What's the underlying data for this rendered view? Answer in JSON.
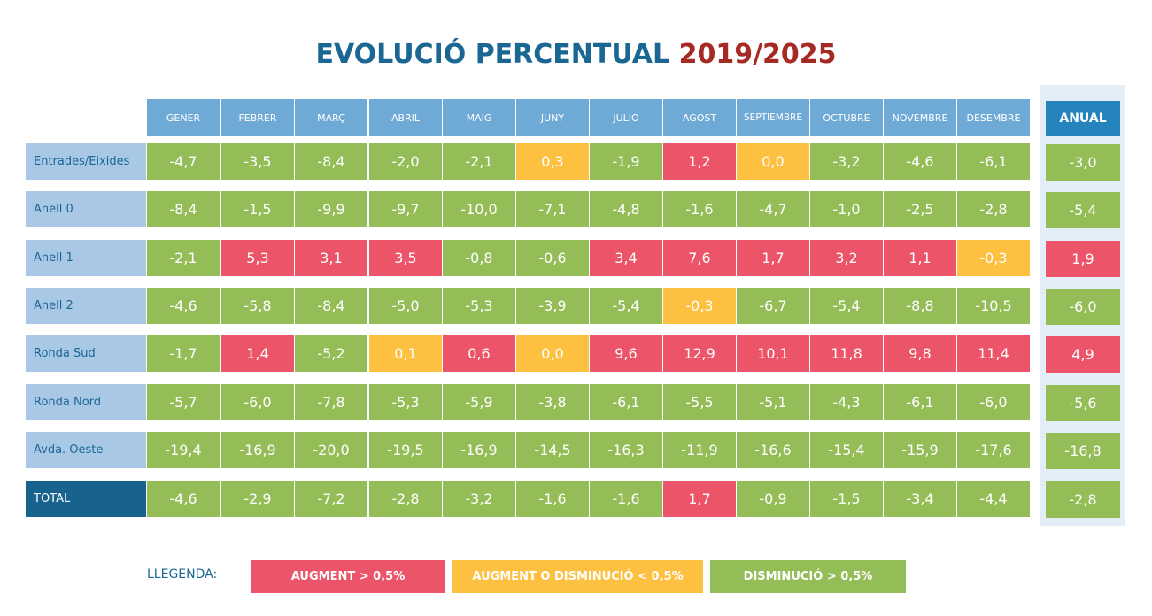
{
  "title": {
    "main": "EVOLUCIÓ PERCENTUAL",
    "years": "2019/2025"
  },
  "colors": {
    "increase": "#ec5569",
    "neutral": "#fdc040",
    "decrease": "#94bd58",
    "header": "#6faad6",
    "anual_header": "#2584bd",
    "row_label": "#a8c8e6",
    "total_label": "#17638d"
  },
  "chart_data": {
    "type": "table",
    "title": "EVOLUCIÓ PERCENTUAL 2019/2025",
    "columns": [
      "GENER",
      "FEBRER",
      "MARÇ",
      "ABRIL",
      "MAIG",
      "JUNY",
      "JULIO",
      "AGOST",
      "SEPTIEMBRE",
      "OCTUBRE",
      "NOVEMBRE",
      "DESEMBRE"
    ],
    "annual_header": "ANUAL",
    "rows": [
      {
        "label": "Entrades/Eixides",
        "values": [
          "-4,7",
          "-3,5",
          "-8,4",
          "-2,0",
          "-2,1",
          "0,3",
          "-1,9",
          "1,2",
          "0,0",
          "-3,2",
          "-4,6",
          "-6,1"
        ],
        "status": [
          "d",
          "d",
          "d",
          "d",
          "d",
          "n",
          "d",
          "i",
          "n",
          "d",
          "d",
          "d"
        ],
        "annual": "-3,0",
        "annual_status": "d"
      },
      {
        "label": "Anell 0",
        "values": [
          "-8,4",
          "-1,5",
          "-9,9",
          "-9,7",
          "-10,0",
          "-7,1",
          "-4,8",
          "-1,6",
          "-4,7",
          "-1,0",
          "-2,5",
          "-2,8"
        ],
        "status": [
          "d",
          "d",
          "d",
          "d",
          "d",
          "d",
          "d",
          "d",
          "d",
          "d",
          "d",
          "d"
        ],
        "annual": "-5,4",
        "annual_status": "d"
      },
      {
        "label": "Anell 1",
        "values": [
          "-2,1",
          "5,3",
          "3,1",
          "3,5",
          "-0,8",
          "-0,6",
          "3,4",
          "7,6",
          "1,7",
          "3,2",
          "1,1",
          "-0,3"
        ],
        "status": [
          "d",
          "i",
          "i",
          "i",
          "d",
          "d",
          "i",
          "i",
          "i",
          "i",
          "i",
          "n"
        ],
        "annual": "1,9",
        "annual_status": "i"
      },
      {
        "label": "Anell 2",
        "values": [
          "-4,6",
          "-5,8",
          "-8,4",
          "-5,0",
          "-5,3",
          "-3,9",
          "-5,4",
          "-0,3",
          "-6,7",
          "-5,4",
          "-8,8",
          "-10,5"
        ],
        "status": [
          "d",
          "d",
          "d",
          "d",
          "d",
          "d",
          "d",
          "n",
          "d",
          "d",
          "d",
          "d"
        ],
        "annual": "-6,0",
        "annual_status": "d"
      },
      {
        "label": "Ronda Sud",
        "values": [
          "-1,7",
          "1,4",
          "-5,2",
          "0,1",
          "0,6",
          "0,0",
          "9,6",
          "12,9",
          "10,1",
          "11,8",
          "9,8",
          "11,4"
        ],
        "status": [
          "d",
          "i",
          "d",
          "n",
          "i",
          "n",
          "i",
          "i",
          "i",
          "i",
          "i",
          "i"
        ],
        "annual": "4,9",
        "annual_status": "i"
      },
      {
        "label": "Ronda Nord",
        "values": [
          "-5,7",
          "-6,0",
          "-7,8",
          "-5,3",
          "-5,9",
          "-3,8",
          "-6,1",
          "-5,5",
          "-5,1",
          "-4,3",
          "-6,1",
          "-6,0"
        ],
        "status": [
          "d",
          "d",
          "d",
          "d",
          "d",
          "d",
          "d",
          "d",
          "d",
          "d",
          "d",
          "d"
        ],
        "annual": "-5,6",
        "annual_status": "d"
      },
      {
        "label": "Avda. Oeste",
        "values": [
          "-19,4",
          "-16,9",
          "-20,0",
          "-19,5",
          "-16,9",
          "-14,5",
          "-16,3",
          "-11,9",
          "-16,6",
          "-15,4",
          "-15,9",
          "-17,6"
        ],
        "status": [
          "d",
          "d",
          "d",
          "d",
          "d",
          "d",
          "d",
          "d",
          "d",
          "d",
          "d",
          "d"
        ],
        "annual": "-16,8",
        "annual_status": "d"
      },
      {
        "label": "TOTAL",
        "values": [
          "-4,6",
          "-2,9",
          "-7,2",
          "-2,8",
          "-3,2",
          "-1,6",
          "-1,6",
          "1,7",
          "-0,9",
          "-1,5",
          "-3,4",
          "-4,4"
        ],
        "status": [
          "d",
          "d",
          "d",
          "d",
          "d",
          "d",
          "d",
          "i",
          "d",
          "d",
          "d",
          "d"
        ],
        "annual": "-2,8",
        "annual_status": "d"
      }
    ]
  },
  "legend": {
    "label": "LLEGENDA:",
    "items": [
      {
        "text": "AUGMENT  > 0,5%",
        "status": "i"
      },
      {
        "text": "AUGMENT O DISMINUCIÓ  < 0,5%",
        "status": "n"
      },
      {
        "text": "DISMINUCIÓ  > 0,5%",
        "status": "d"
      }
    ]
  }
}
